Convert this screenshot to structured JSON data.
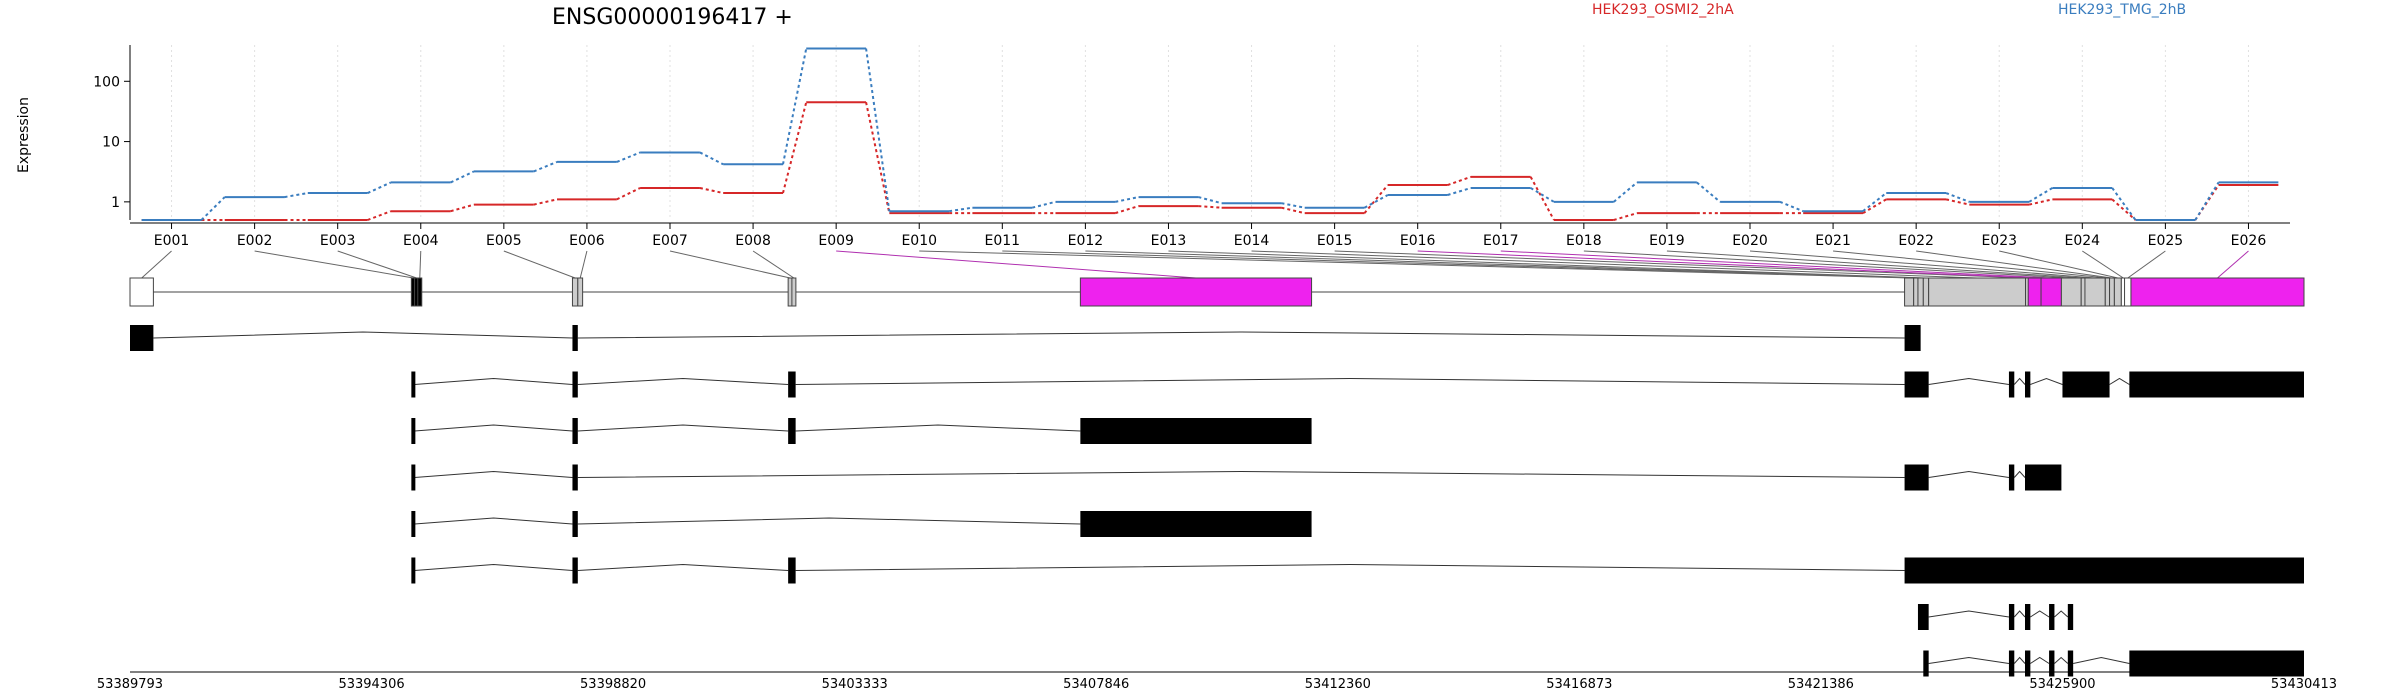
{
  "chart_data": {
    "type": "line",
    "title": "ENSG00000196417 +",
    "ylabel": "Expression",
    "yscale": "log",
    "ylim": [
      0.5,
      400
    ],
    "yticks": [
      1,
      10,
      100
    ],
    "ytick_labels": [
      "1",
      "10",
      "100"
    ],
    "categories": [
      "E001",
      "E002",
      "E003",
      "E004",
      "E005",
      "E006",
      "E007",
      "E008",
      "E009",
      "E010",
      "E011",
      "E012",
      "E013",
      "E014",
      "E015",
      "E016",
      "E017",
      "E018",
      "E019",
      "E020",
      "E021",
      "E022",
      "E023",
      "E024",
      "E025",
      "E026"
    ],
    "series": [
      {
        "name": "HEK293_OSMI2_2hA",
        "color": "#d62728",
        "values": [
          0.5,
          0.5,
          0.5,
          0.7,
          0.9,
          1.1,
          1.7,
          1.4,
          45,
          0.65,
          0.65,
          0.65,
          0.85,
          0.8,
          0.65,
          1.9,
          2.6,
          0.5,
          0.65,
          0.65,
          0.65,
          1.1,
          0.9,
          1.1,
          0.5,
          1.9
        ]
      },
      {
        "name": "HEK293_TMG_2hB",
        "color": "#3a7dbf",
        "values": [
          0.5,
          1.2,
          1.4,
          2.1,
          3.2,
          4.6,
          6.6,
          4.2,
          350,
          0.7,
          0.8,
          1.0,
          1.2,
          0.95,
          0.8,
          1.3,
          1.7,
          1.0,
          2.1,
          1.0,
          0.7,
          1.4,
          1.0,
          1.7,
          0.5,
          2.1
        ]
      }
    ],
    "legend_position": "top",
    "grid": "vertical-dotted",
    "genomic_axis": {
      "range": [
        53389793,
        53430413
      ],
      "tick_values": [
        53389793,
        53394306,
        53398820,
        53403333,
        53407846,
        53412360,
        53416873,
        53421386,
        53425900,
        53430413
      ],
      "tick_labels": [
        "53389793",
        "53394306",
        "53398820",
        "53403333",
        "53407846",
        "53412360",
        "53416873",
        "53421386",
        "53425900",
        "53430413"
      ]
    },
    "exon_bins": [
      {
        "id": "E001",
        "start": 53389793,
        "end": 53390230,
        "color": "#ffffff"
      },
      {
        "id": "E002",
        "start": 53395050,
        "end": 53395110,
        "color": "#000000"
      },
      {
        "id": "E003",
        "start": 53395110,
        "end": 53395170,
        "color": "#000000"
      },
      {
        "id": "E004",
        "start": 53395170,
        "end": 53395230,
        "color": "#000000"
      },
      {
        "id": "E005",
        "start": 53398060,
        "end": 53398160,
        "color": "#cccccc"
      },
      {
        "id": "E006",
        "start": 53398160,
        "end": 53398250,
        "color": "#cccccc"
      },
      {
        "id": "E007",
        "start": 53402090,
        "end": 53402160,
        "color": "#cccccc"
      },
      {
        "id": "E008",
        "start": 53402160,
        "end": 53402230,
        "color": "#cccccc"
      },
      {
        "id": "E009",
        "start": 53407550,
        "end": 53411870,
        "color": "#ee22ee"
      },
      {
        "id": "E010",
        "start": 53422950,
        "end": 53423120,
        "color": "#cccccc"
      },
      {
        "id": "E011",
        "start": 53423120,
        "end": 53423200,
        "color": "#cccccc"
      },
      {
        "id": "E012",
        "start": 53423200,
        "end": 53423300,
        "color": "#cccccc"
      },
      {
        "id": "E013",
        "start": 53423300,
        "end": 53423400,
        "color": "#cccccc"
      },
      {
        "id": "E014",
        "start": 53423400,
        "end": 53425210,
        "color": "#cccccc"
      },
      {
        "id": "E015",
        "start": 53425210,
        "end": 53425260,
        "color": "#cccccc"
      },
      {
        "id": "E016",
        "start": 53425260,
        "end": 53425500,
        "color": "#ee22ee"
      },
      {
        "id": "E017",
        "start": 53425500,
        "end": 53425880,
        "color": "#ee22ee"
      },
      {
        "id": "E018",
        "start": 53425880,
        "end": 53426250,
        "color": "#cccccc"
      },
      {
        "id": "E019",
        "start": 53426250,
        "end": 53426320,
        "color": "#cccccc"
      },
      {
        "id": "E020",
        "start": 53426320,
        "end": 53426700,
        "color": "#cccccc"
      },
      {
        "id": "E021",
        "start": 53426700,
        "end": 53426780,
        "color": "#cccccc"
      },
      {
        "id": "E022",
        "start": 53426780,
        "end": 53426870,
        "color": "#cccccc"
      },
      {
        "id": "E023",
        "start": 53426870,
        "end": 53427000,
        "color": "#cccccc"
      },
      {
        "id": "E024",
        "start": 53427000,
        "end": 53427060,
        "color": "#ffffff"
      },
      {
        "id": "E025",
        "start": 53427060,
        "end": 53427180,
        "color": "#ffffff"
      },
      {
        "id": "E026",
        "start": 53427180,
        "end": 53430413,
        "color": "#ee22ee"
      }
    ],
    "transcripts": [
      {
        "exons": [
          [
            53389793,
            53390230
          ],
          [
            53398060,
            53398160
          ],
          [
            53422950,
            53423250
          ]
        ]
      },
      {
        "exons": [
          [
            53395050,
            53395110
          ],
          [
            53398060,
            53398160
          ],
          [
            53402090,
            53402230
          ],
          [
            53422950,
            53423400
          ],
          [
            53424900,
            53425000
          ],
          [
            53425200,
            53425300
          ],
          [
            53425900,
            53426780
          ],
          [
            53427150,
            53430413
          ]
        ]
      },
      {
        "exons": [
          [
            53395050,
            53395110
          ],
          [
            53398060,
            53398160
          ],
          [
            53402090,
            53402230
          ],
          [
            53407550,
            53411870
          ]
        ]
      },
      {
        "exons": [
          [
            53395050,
            53395110
          ],
          [
            53398060,
            53398160
          ],
          [
            53422950,
            53423400
          ],
          [
            53424900,
            53425000
          ],
          [
            53425200,
            53425880
          ]
        ]
      },
      {
        "exons": [
          [
            53395050,
            53395110
          ],
          [
            53398060,
            53398160
          ],
          [
            53407550,
            53411870
          ]
        ]
      },
      {
        "exons": [
          [
            53395050,
            53395110
          ],
          [
            53398060,
            53398160
          ],
          [
            53402090,
            53402230
          ],
          [
            53422950,
            53430413
          ]
        ]
      },
      {
        "exons": [
          [
            53423200,
            53423400
          ],
          [
            53424900,
            53425000
          ],
          [
            53425200,
            53425300
          ],
          [
            53425650,
            53425750
          ],
          [
            53426000,
            53426100
          ]
        ]
      },
      {
        "exons": [
          [
            53423300,
            53423400
          ],
          [
            53424900,
            53425000
          ],
          [
            53425200,
            53425300
          ],
          [
            53425650,
            53425750
          ],
          [
            53426000,
            53426100
          ],
          [
            53427150,
            53430413
          ]
        ]
      }
    ]
  }
}
